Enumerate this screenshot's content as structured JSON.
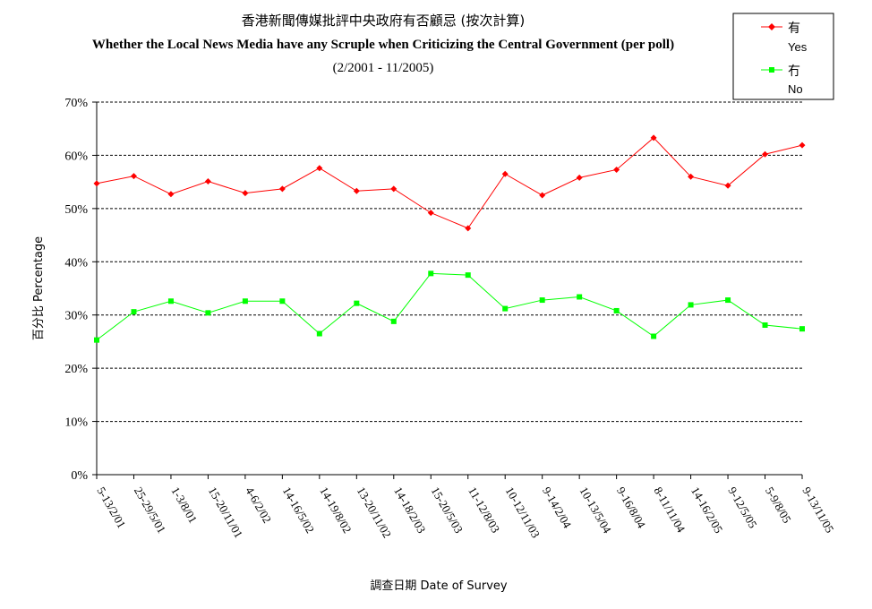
{
  "chart_data": {
    "type": "line",
    "title": "香港新聞傳媒批評中央政府有否顧忌 (按次計算)",
    "subtitle": "Whether the Local News Media have any Scruple when Criticizing the Central Government (per poll)",
    "subtitle2": "(2/2001 - 11/2005)",
    "xlabel": "調查日期 Date of Survey",
    "ylabel": "百分比 Percentage",
    "ylim": [
      0,
      70
    ],
    "yticks": [
      "0%",
      "10%",
      "20%",
      "30%",
      "40%",
      "50%",
      "60%",
      "70%"
    ],
    "grid": true,
    "legend_position": "top-right",
    "categories": [
      "5-13/2/01",
      "25-29/5/01",
      "1-3/8/01",
      "15-20/11/01",
      "4-6/2/02",
      "14-16/5/02",
      "14-19/8/02",
      "13-20/11/02",
      "14-18/2/03",
      "15-20/5/03",
      "11-12/8/03",
      "10-12/11/03",
      "9-14/2/04",
      "10-13/5/04",
      "9-16/8/04",
      "8-11/11/04",
      "14-16/2/05",
      "9-12/5/05",
      "5-9/8/05",
      "9-13/11/05"
    ],
    "series": [
      {
        "name": "有 Yes",
        "label_zh": "有",
        "label_en": "Yes",
        "color": "#ff0000",
        "marker": "diamond",
        "values": [
          54.7,
          56.1,
          52.7,
          55.1,
          52.9,
          53.7,
          57.6,
          53.3,
          53.7,
          49.2,
          46.3,
          56.5,
          52.5,
          55.8,
          57.3,
          63.3,
          56.0,
          54.3,
          60.2,
          61.9
        ]
      },
      {
        "name": "冇 No",
        "label_zh": "冇",
        "label_en": "No",
        "color": "#00ff00",
        "marker": "square",
        "values": [
          25.3,
          30.6,
          32.6,
          30.4,
          32.6,
          32.6,
          26.5,
          32.2,
          28.8,
          37.8,
          37.5,
          31.2,
          32.8,
          33.4,
          30.8,
          26.0,
          31.9,
          32.8,
          28.1,
          27.4
        ]
      }
    ]
  }
}
